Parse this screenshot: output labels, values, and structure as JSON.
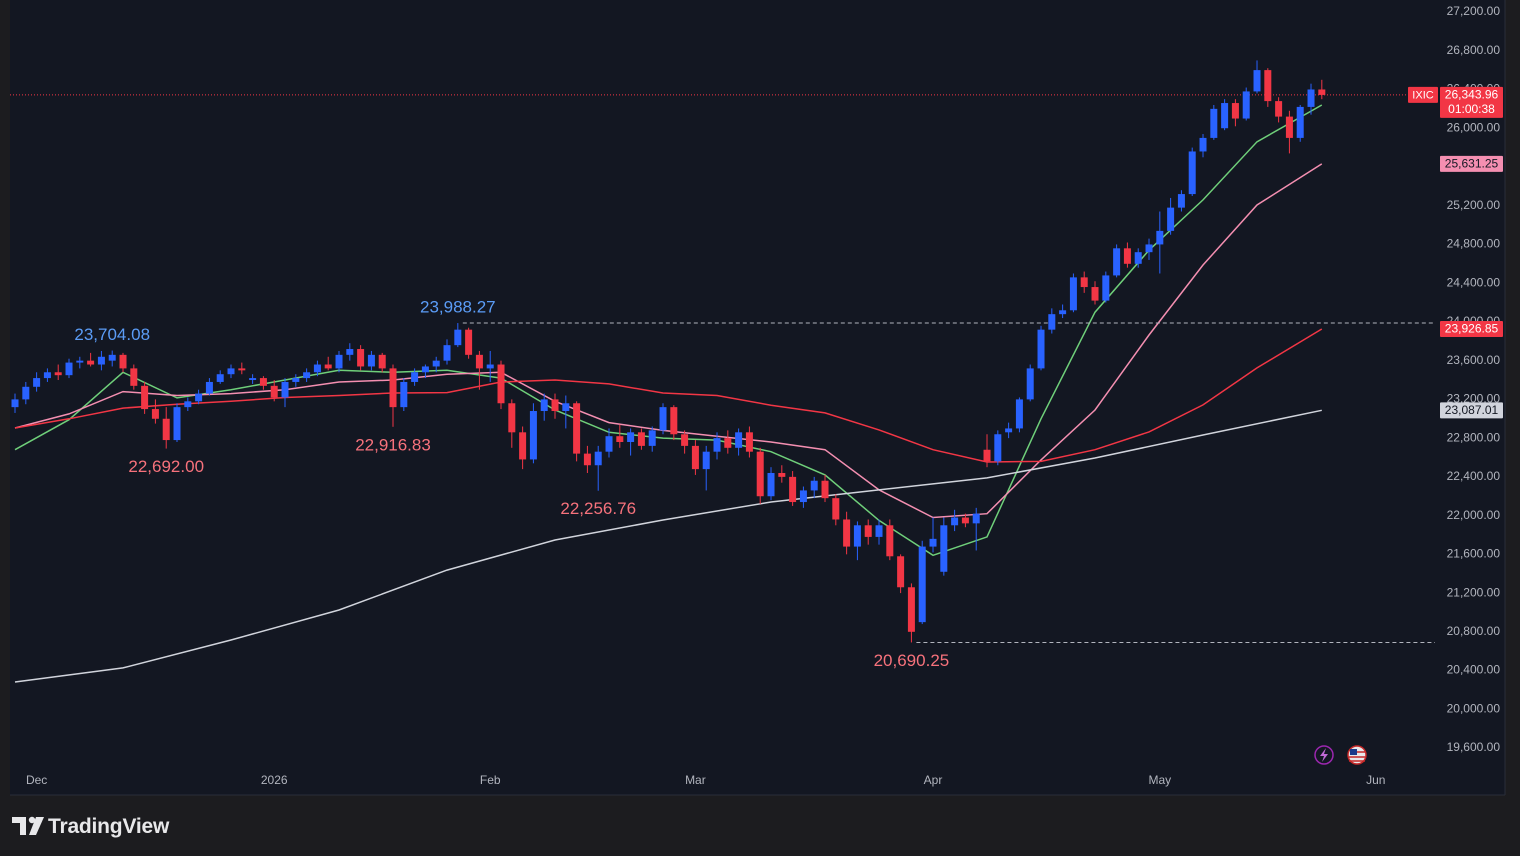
{
  "chart_data": {
    "type": "candlestick",
    "symbol": "IXIC",
    "last_price_label": "26,343.96",
    "countdown": "01:00:38",
    "up_color": "#2962ff",
    "down_color": "#f23645",
    "background": "#131722",
    "grid": false,
    "xlim": [
      -1.39,
      131.48
    ],
    "xticks": [
      {
        "value": 2,
        "label": "Dec"
      },
      {
        "value": 24,
        "label": "2026"
      },
      {
        "value": 44,
        "label": "Feb"
      },
      {
        "value": 63,
        "label": "Mar"
      },
      {
        "value": 85,
        "label": "Apr"
      },
      {
        "value": 106,
        "label": "May"
      },
      {
        "value": 126,
        "label": "Jun"
      }
    ],
    "ylim": [
      19115,
      27324
    ],
    "yticks": [
      {
        "value": 19600,
        "label": "19,600.00"
      },
      {
        "value": 20000,
        "label": "20,000.00"
      },
      {
        "value": 20400,
        "label": "20,400.00"
      },
      {
        "value": 20800,
        "label": "20,800.00"
      },
      {
        "value": 21200,
        "label": "21,200.00"
      },
      {
        "value": 21600,
        "label": "21,600.00"
      },
      {
        "value": 22000,
        "label": "22,000.00"
      },
      {
        "value": 22400,
        "label": "22,400.00"
      },
      {
        "value": 22800,
        "label": "22,800.00"
      },
      {
        "value": 23200,
        "label": "23,200.00"
      },
      {
        "value": 23600,
        "label": "23,600.00"
      },
      {
        "value": 24000,
        "label": "24,000.00"
      },
      {
        "value": 24400,
        "label": "24,400.00"
      },
      {
        "value": 24800,
        "label": "24,800.00"
      },
      {
        "value": 25200,
        "label": "25,200.00"
      },
      {
        "value": 25600,
        "label": "25,600.00"
      },
      {
        "value": 26000,
        "label": "26,000.00"
      },
      {
        "value": 26400,
        "label": "26,400.00"
      },
      {
        "value": 26800,
        "label": "26,800.00"
      },
      {
        "value": 27200,
        "label": "27,200.00"
      }
    ],
    "candles": {
      "open": [
        23120,
        23200,
        23330,
        23420,
        23480,
        23450,
        23580,
        23600,
        23560,
        23600,
        23660,
        23520,
        23340,
        23100,
        23000,
        22780,
        23120,
        23180,
        23260,
        23380,
        23460,
        23520,
        23400,
        23420,
        23340,
        23220,
        23380,
        23420,
        23480,
        23560,
        23520,
        23660,
        23720,
        23540,
        23660,
        23520,
        23120,
        23380,
        23480,
        23540,
        23600,
        23760,
        23920,
        23660,
        23520,
        23560,
        23160,
        22860,
        22580,
        23080,
        23200,
        23080,
        23160,
        22640,
        22520,
        22660,
        22820,
        22760,
        22860,
        22720,
        22880,
        23120,
        22840,
        22720,
        22480,
        22660,
        22800,
        22700,
        22860,
        22660,
        22200,
        22440,
        22400,
        22140,
        22260,
        22360,
        22180,
        21960,
        21680,
        21900,
        21780,
        21900,
        21580,
        21260,
        20900,
        21680,
        21420,
        21900,
        21980,
        21920,
        22680,
        22560,
        22860,
        22900,
        23200,
        23520,
        23920,
        24080,
        24120,
        24460,
        24360,
        24220,
        24480,
        24760,
        24600,
        24720,
        24800,
        24940,
        25180,
        25320,
        25760,
        25900,
        26000,
        26260,
        26100,
        26380,
        26600,
        26280,
        26120,
        25900,
        26220,
        26400
      ],
      "high": [
        23260,
        23380,
        23480,
        23520,
        23560,
        23620,
        23640,
        23680,
        23700,
        23704.08,
        23680,
        23560,
        23380,
        23200,
        23120,
        23160,
        23220,
        23300,
        23420,
        23500,
        23560,
        23580,
        23460,
        23440,
        23400,
        23420,
        23460,
        23520,
        23600,
        23640,
        23700,
        23780,
        23760,
        23700,
        23680,
        23560,
        23420,
        23520,
        23560,
        23640,
        23820,
        23988.27,
        23940,
        23700,
        23700,
        23600,
        23200,
        22920,
        23160,
        23260,
        23260,
        23240,
        23180,
        22720,
        22720,
        22900,
        22940,
        22900,
        22900,
        22920,
        23160,
        23140,
        22880,
        22780,
        22720,
        22860,
        22880,
        22900,
        22920,
        22700,
        22500,
        22520,
        22460,
        22300,
        22400,
        22420,
        22220,
        22040,
        21940,
        21960,
        21960,
        21960,
        21600,
        21300,
        21740,
        21980,
        21980,
        22060,
        22020,
        22080,
        22840,
        22880,
        22960,
        23220,
        23560,
        23960,
        24140,
        24180,
        24500,
        24520,
        24420,
        24520,
        24800,
        24820,
        24760,
        24860,
        25140,
        25280,
        25360,
        25800,
        25940,
        26240,
        26300,
        26300,
        26420,
        26700,
        26620,
        26320,
        26180,
        26240,
        26460,
        26500
      ],
      "low": [
        23060,
        23150,
        23280,
        23380,
        23400,
        23420,
        23520,
        23540,
        23500,
        23540,
        23480,
        23300,
        23050,
        22950,
        22692,
        22760,
        23080,
        23150,
        23240,
        23360,
        23420,
        23460,
        23360,
        23300,
        23180,
        23120,
        23330,
        23380,
        23440,
        23500,
        23480,
        23600,
        23500,
        23500,
        23480,
        22916.83,
        23080,
        23340,
        23420,
        23480,
        23560,
        23740,
        23620,
        23300,
        23380,
        23100,
        22700,
        22480,
        22540,
        22980,
        23000,
        22900,
        22560,
        22440,
        22256.76,
        22600,
        22700,
        22620,
        22680,
        22660,
        22840,
        22780,
        22640,
        22420,
        22260,
        22580,
        22640,
        22620,
        22600,
        22120,
        22160,
        22340,
        22100,
        22080,
        22180,
        22140,
        21900,
        21600,
        21540,
        21700,
        21700,
        21540,
        21200,
        20690.25,
        20880,
        21620,
        21380,
        21840,
        21880,
        21640,
        22500,
        22520,
        22800,
        22860,
        23180,
        23500,
        23880,
        24040,
        24100,
        24300,
        24180,
        24200,
        24460,
        24560,
        24560,
        24640,
        24500,
        24900,
        25140,
        25300,
        25700,
        25880,
        25980,
        26020,
        26080,
        26360,
        26220,
        26060,
        25740,
        25860,
        26140,
        26300
      ],
      "close": [
        23200,
        23330,
        23420,
        23480,
        23450,
        23580,
        23600,
        23560,
        23640,
        23660,
        23520,
        23340,
        23100,
        23000,
        22780,
        23120,
        23180,
        23260,
        23380,
        23460,
        23520,
        23500,
        23420,
        23340,
        23220,
        23380,
        23420,
        23480,
        23560,
        23520,
        23660,
        23720,
        23540,
        23660,
        23520,
        23120,
        23380,
        23480,
        23540,
        23600,
        23760,
        23920,
        23660,
        23520,
        23560,
        23160,
        22860,
        22580,
        23080,
        23200,
        23080,
        23160,
        22640,
        22520,
        22660,
        22820,
        22760,
        22860,
        22720,
        22880,
        23120,
        22840,
        22720,
        22480,
        22660,
        22800,
        22700,
        22860,
        22660,
        22200,
        22440,
        22400,
        22140,
        22260,
        22360,
        22180,
        21960,
        21680,
        21900,
        21780,
        21900,
        21580,
        21260,
        20800,
        21680,
        21760,
        21900,
        21980,
        21920,
        22020,
        22560,
        22840,
        22900,
        23200,
        23520,
        23920,
        24080,
        24120,
        24460,
        24360,
        24220,
        24480,
        24760,
        24600,
        24720,
        24800,
        24940,
        25180,
        25320,
        25760,
        25900,
        26200,
        26260,
        26100,
        26380,
        26600,
        26280,
        26120,
        25900,
        26220,
        26400,
        26343.96
      ]
    },
    "lines": [
      {
        "color": "#6fcf7a",
        "x": [
          0,
          5,
          10,
          15,
          20,
          25,
          30,
          35,
          40,
          45,
          50,
          55,
          60,
          65,
          70,
          75,
          80,
          85,
          90,
          95,
          100,
          105,
          110,
          115,
          121
        ],
        "values": [
          22680,
          22990,
          23480,
          23215,
          23300,
          23400,
          23500,
          23480,
          23500,
          23420,
          23090,
          22860,
          22800,
          22780,
          22660,
          22420,
          21950,
          21590,
          21780,
          23000,
          24100,
          24740,
          25260,
          25860,
          26240
        ]
      },
      {
        "color": "#f48fb1",
        "axis_label": "25,631.25",
        "label_text_color": "#131722",
        "x": [
          0,
          5,
          10,
          15,
          20,
          25,
          30,
          35,
          40,
          45,
          50,
          55,
          60,
          65,
          70,
          75,
          80,
          85,
          90,
          95,
          100,
          105,
          110,
          115,
          121
        ],
        "values": [
          22905,
          23050,
          23280,
          23240,
          23260,
          23300,
          23380,
          23400,
          23460,
          23480,
          23180,
          22960,
          22880,
          22820,
          22760,
          22680,
          22265,
          21980,
          22020,
          22575,
          23090,
          23865,
          24588,
          25207,
          25631.25
        ]
      },
      {
        "color": "#f23645",
        "axis_label": "23,926.85",
        "label_text_color": "#ffffff",
        "x": [
          0,
          5,
          10,
          15,
          20,
          25,
          30,
          35,
          40,
          45,
          50,
          55,
          60,
          65,
          70,
          75,
          80,
          85,
          90,
          95,
          100,
          105,
          110,
          115,
          121
        ],
        "values": [
          22905,
          23000,
          23110,
          23150,
          23180,
          23220,
          23240,
          23266,
          23270,
          23380,
          23400,
          23360,
          23266,
          23240,
          23140,
          23060,
          22885,
          22680,
          22554,
          22560,
          22680,
          22864,
          23143,
          23525,
          23926.85
        ]
      },
      {
        "color": "#d1d4dc",
        "axis_label": "23,087.01",
        "label_text_color": "#131722",
        "x": [
          0,
          10,
          20,
          30,
          40,
          50,
          60,
          70,
          80,
          90,
          100,
          110,
          121
        ],
        "values": [
          20282,
          20427,
          20716,
          21025,
          21437,
          21748,
          21955,
          22140,
          22265,
          22389,
          22595,
          22832,
          23087.01
        ]
      }
    ],
    "annotations": [
      {
        "label": "23,704.08",
        "value": 23704.08,
        "index": 9,
        "color": "#5b9cf6",
        "side": "above"
      },
      {
        "label": "22,692.00",
        "value": 22692,
        "index": 14,
        "color": "#f7727c",
        "side": "below"
      },
      {
        "label": "22,916.83",
        "value": 22916.83,
        "index": 35,
        "color": "#f7727c",
        "side": "below"
      },
      {
        "label": "23,988.27",
        "value": 23988.27,
        "index": 41,
        "color": "#5b9cf6",
        "side": "above",
        "dashed_line": true
      },
      {
        "label": "22,256.76",
        "value": 22256.76,
        "index": 54,
        "color": "#f7727c",
        "side": "below"
      },
      {
        "label": "20,690.25",
        "value": 20690.25,
        "index": 83,
        "color": "#f7727c",
        "side": "below",
        "dashed_line": true
      }
    ]
  },
  "footer": {
    "brand": "TradingView"
  }
}
